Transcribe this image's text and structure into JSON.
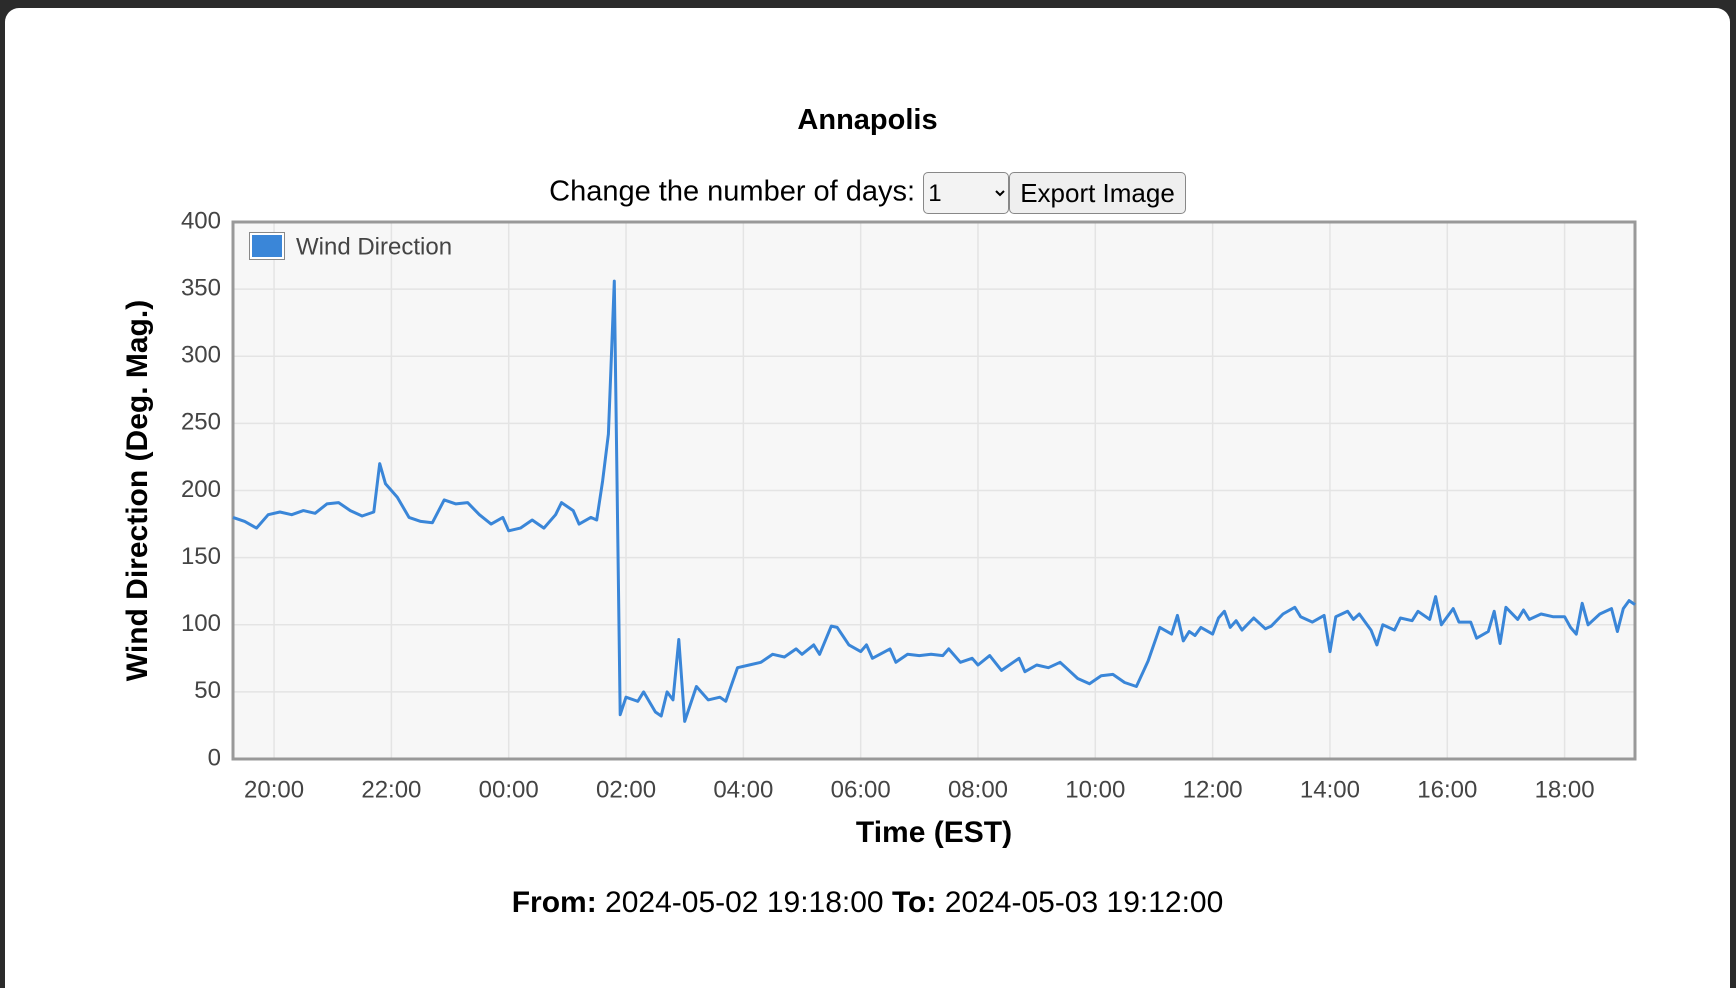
{
  "page": {
    "title": "Annapolis",
    "days_label": "Change the number of days:",
    "days_value": "1",
    "export_button": "Export Image",
    "from_label": "From:",
    "from_value": "2024-05-02 19:18:00",
    "to_label": "To:",
    "to_value": "2024-05-03 19:12:00"
  },
  "chart_data": {
    "type": "line",
    "xlabel": "Time (EST)",
    "ylabel": "Wind Direction (Deg. Mag.)",
    "x": [
      "2024-05-02 19:18",
      "2024-05-02 19:30",
      "2024-05-02 19:42",
      "2024-05-02 19:54",
      "2024-05-02 20:06",
      "2024-05-02 20:18",
      "2024-05-02 20:30",
      "2024-05-02 20:42",
      "2024-05-02 20:54",
      "2024-05-02 21:06",
      "2024-05-02 21:18",
      "2024-05-02 21:30",
      "2024-05-02 21:42",
      "2024-05-02 21:48",
      "2024-05-02 21:54",
      "2024-05-02 22:06",
      "2024-05-02 22:18",
      "2024-05-02 22:30",
      "2024-05-02 22:42",
      "2024-05-02 22:54",
      "2024-05-02 23:06",
      "2024-05-02 23:18",
      "2024-05-02 23:30",
      "2024-05-02 23:42",
      "2024-05-02 23:54",
      "2024-05-03 00:00",
      "2024-05-03 00:12",
      "2024-05-03 00:24",
      "2024-05-03 00:36",
      "2024-05-03 00:48",
      "2024-05-03 00:54",
      "2024-05-03 01:06",
      "2024-05-03 01:12",
      "2024-05-03 01:24",
      "2024-05-03 01:30",
      "2024-05-03 01:36",
      "2024-05-03 01:42",
      "2024-05-03 01:48",
      "2024-05-03 01:54",
      "2024-05-03 02:00",
      "2024-05-03 02:12",
      "2024-05-03 02:18",
      "2024-05-03 02:30",
      "2024-05-03 02:36",
      "2024-05-03 02:42",
      "2024-05-03 02:48",
      "2024-05-03 02:54",
      "2024-05-03 03:00",
      "2024-05-03 03:12",
      "2024-05-03 03:24",
      "2024-05-03 03:36",
      "2024-05-03 03:42",
      "2024-05-03 03:54",
      "2024-05-03 04:06",
      "2024-05-03 04:18",
      "2024-05-03 04:30",
      "2024-05-03 04:42",
      "2024-05-03 04:54",
      "2024-05-03 05:00",
      "2024-05-03 05:12",
      "2024-05-03 05:18",
      "2024-05-03 05:30",
      "2024-05-03 05:36",
      "2024-05-03 05:48",
      "2024-05-03 06:00",
      "2024-05-03 06:06",
      "2024-05-03 06:12",
      "2024-05-03 06:30",
      "2024-05-03 06:36",
      "2024-05-03 06:48",
      "2024-05-03 07:00",
      "2024-05-03 07:12",
      "2024-05-03 07:24",
      "2024-05-03 07:30",
      "2024-05-03 07:42",
      "2024-05-03 07:54",
      "2024-05-03 08:00",
      "2024-05-03 08:12",
      "2024-05-03 08:24",
      "2024-05-03 08:36",
      "2024-05-03 08:42",
      "2024-05-03 08:48",
      "2024-05-03 09:00",
      "2024-05-03 09:12",
      "2024-05-03 09:24",
      "2024-05-03 09:30",
      "2024-05-03 09:42",
      "2024-05-03 09:54",
      "2024-05-03 10:06",
      "2024-05-03 10:18",
      "2024-05-03 10:30",
      "2024-05-03 10:42",
      "2024-05-03 10:54",
      "2024-05-03 11:06",
      "2024-05-03 11:18",
      "2024-05-03 11:24",
      "2024-05-03 11:30",
      "2024-05-03 11:36",
      "2024-05-03 11:42",
      "2024-05-03 11:48",
      "2024-05-03 12:00",
      "2024-05-03 12:06",
      "2024-05-03 12:12",
      "2024-05-03 12:18",
      "2024-05-03 12:24",
      "2024-05-03 12:30",
      "2024-05-03 12:42",
      "2024-05-03 12:54",
      "2024-05-03 13:00",
      "2024-05-03 13:12",
      "2024-05-03 13:24",
      "2024-05-03 13:30",
      "2024-05-03 13:42",
      "2024-05-03 13:54",
      "2024-05-03 14:00",
      "2024-05-03 14:06",
      "2024-05-03 14:18",
      "2024-05-03 14:24",
      "2024-05-03 14:30",
      "2024-05-03 14:42",
      "2024-05-03 14:48",
      "2024-05-03 14:54",
      "2024-05-03 15:06",
      "2024-05-03 15:12",
      "2024-05-03 15:24",
      "2024-05-03 15:30",
      "2024-05-03 15:42",
      "2024-05-03 15:48",
      "2024-05-03 15:54",
      "2024-05-03 16:06",
      "2024-05-03 16:12",
      "2024-05-03 16:24",
      "2024-05-03 16:30",
      "2024-05-03 16:42",
      "2024-05-03 16:48",
      "2024-05-03 16:54",
      "2024-05-03 17:00",
      "2024-05-03 17:12",
      "2024-05-03 17:18",
      "2024-05-03 17:24",
      "2024-05-03 17:36",
      "2024-05-03 17:48",
      "2024-05-03 18:00",
      "2024-05-03 18:06",
      "2024-05-03 18:12",
      "2024-05-03 18:18",
      "2024-05-03 18:24",
      "2024-05-03 18:36",
      "2024-05-03 18:48",
      "2024-05-03 18:54",
      "2024-05-03 19:00",
      "2024-05-03 19:06",
      "2024-05-03 19:12"
    ],
    "series": [
      {
        "name": "Wind Direction",
        "color": "#3a86d8",
        "values": [
          180,
          177,
          172,
          182,
          184,
          182,
          185,
          183,
          190,
          191,
          185,
          181,
          184,
          220,
          205,
          195,
          180,
          177,
          176,
          193,
          190,
          191,
          182,
          175,
          180,
          170,
          172,
          178,
          172,
          182,
          191,
          185,
          175,
          180,
          178,
          207,
          242,
          356,
          33,
          46,
          43,
          50,
          35,
          32,
          50,
          44,
          89,
          28,
          54,
          44,
          46,
          43,
          68,
          70,
          72,
          78,
          76,
          82,
          78,
          85,
          78,
          99,
          98,
          85,
          80,
          85,
          75,
          82,
          72,
          78,
          77,
          78,
          77,
          82,
          72,
          75,
          70,
          77,
          66,
          72,
          75,
          65,
          70,
          68,
          72,
          68,
          60,
          56,
          62,
          63,
          57,
          54,
          73,
          98,
          93,
          107,
          88,
          95,
          92,
          98,
          93,
          105,
          110,
          98,
          103,
          96,
          105,
          97,
          99,
          108,
          113,
          106,
          102,
          107,
          80,
          106,
          110,
          104,
          108,
          96,
          85,
          100,
          96,
          105,
          103,
          110,
          104,
          121,
          100,
          112,
          102,
          102,
          90,
          95,
          110,
          86,
          113,
          104,
          111,
          104,
          108,
          106,
          106,
          98,
          93,
          116,
          100,
          108,
          112,
          95,
          112,
          118,
          115
        ]
      }
    ],
    "xlim": [
      "2024-05-02 19:18",
      "2024-05-03 19:12"
    ],
    "xticks": [
      {
        "value": "2024-05-02 20:00",
        "label": "20:00"
      },
      {
        "value": "2024-05-02 22:00",
        "label": "22:00"
      },
      {
        "value": "2024-05-03 00:00",
        "label": "00:00"
      },
      {
        "value": "2024-05-03 02:00",
        "label": "02:00"
      },
      {
        "value": "2024-05-03 04:00",
        "label": "04:00"
      },
      {
        "value": "2024-05-03 06:00",
        "label": "06:00"
      },
      {
        "value": "2024-05-03 08:00",
        "label": "08:00"
      },
      {
        "value": "2024-05-03 10:00",
        "label": "10:00"
      },
      {
        "value": "2024-05-03 12:00",
        "label": "12:00"
      },
      {
        "value": "2024-05-03 14:00",
        "label": "14:00"
      },
      {
        "value": "2024-05-03 16:00",
        "label": "16:00"
      },
      {
        "value": "2024-05-03 18:00",
        "label": "18:00"
      }
    ],
    "ylim": [
      0,
      400
    ],
    "yticks": [
      0,
      50,
      100,
      150,
      200,
      250,
      300,
      350,
      400
    ],
    "grid": true,
    "legend": "upper left"
  }
}
